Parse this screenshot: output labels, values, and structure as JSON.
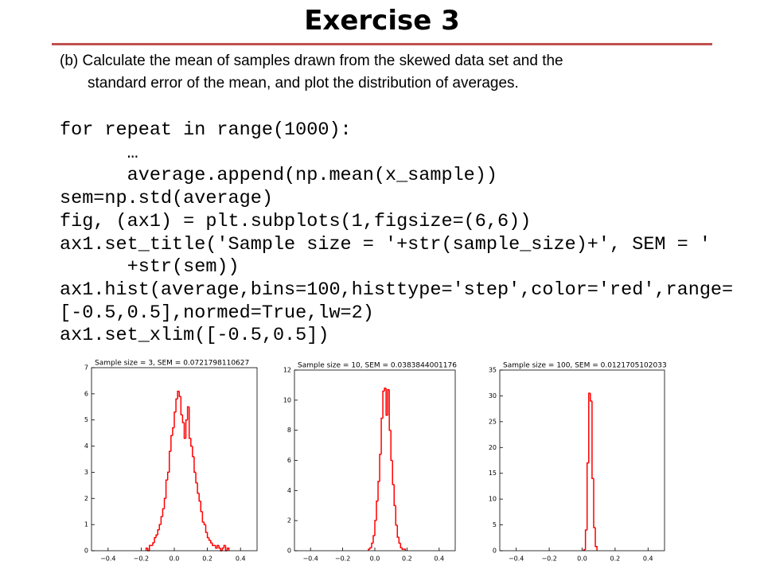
{
  "header": {
    "title": "Exercise 3"
  },
  "text": [
    "(b) Calculate the mean of samples drawn from the skewed data set and the",
    "standard error of the mean, and plot the distribution of averages."
  ],
  "code": [
    "for repeat in range(1000):",
    "      …",
    "      average.append(np.mean(x_sample))",
    "sem=np.std(average)",
    "fig, (ax1) = plt.subplots(1,figsize=(6,6))",
    "ax1.set_title('Sample size = '+str(sample_size)+', SEM = '",
    "      +str(sem))",
    "ax1.hist(average,bins=100,histtype='step',color='red',range=",
    "[-0.5,0.5],normed=True,lw=2)",
    "ax1.set_xlim([-0.5,0.5])"
  ],
  "chart_data": [
    {
      "type": "histogram",
      "title": "Sample size = 3, SEM = 0.0721798110627",
      "color": "#ff0000",
      "bins": [
        -0.17,
        -0.16,
        -0.15,
        -0.14,
        -0.13,
        -0.12,
        -0.11,
        -0.1,
        -0.09,
        -0.08,
        -0.07,
        -0.06,
        -0.05,
        -0.04,
        -0.03,
        -0.02,
        -0.01,
        0,
        0.01,
        0.02,
        0.03,
        0.04,
        0.05,
        0.06,
        0.07,
        0.08,
        0.09,
        0.1,
        0.11,
        0.12,
        0.13,
        0.14,
        0.15,
        0.16,
        0.17,
        0.18,
        0.19,
        0.2,
        0.21,
        0.22,
        0.23,
        0.24,
        0.25,
        0.26,
        0.27,
        0.28,
        0.29,
        0.3,
        0.31,
        0.32,
        0.33
      ],
      "values": [
        0.1,
        0,
        0.2,
        0.2,
        0.3,
        0.5,
        0.6,
        0.8,
        1.0,
        1.3,
        1.6,
        2.0,
        2.7,
        3.0,
        3.8,
        4.4,
        4.7,
        5.3,
        5.8,
        6.1,
        5.9,
        5.2,
        4.9,
        4.3,
        5.0,
        5.5,
        4.3,
        4.0,
        3.6,
        3.0,
        2.6,
        2.2,
        1.9,
        1.5,
        1.1,
        1.0,
        0.7,
        0.5,
        0.4,
        0.3,
        0.2,
        0.2,
        0.1,
        0.2,
        0.1,
        0,
        0.1,
        0.2,
        0,
        0.1
      ],
      "xlim": [
        -0.5,
        0.5
      ],
      "xticks": [
        {
          "value": -0.4,
          "label": "−0.4"
        },
        {
          "value": -0.2,
          "label": "−0.2"
        },
        {
          "value": 0,
          "label": "0.0"
        },
        0.2,
        0.4
      ],
      "ylim": [
        0,
        7
      ],
      "yticks": [
        0,
        1,
        2,
        3,
        4,
        5,
        6,
        7
      ]
    },
    {
      "type": "histogram",
      "title": "Sample size = 10, SEM = 0.0383844001176",
      "color": "#ff0000",
      "bins": [
        -0.04,
        -0.03,
        -0.02,
        -0.01,
        0,
        0.01,
        0.02,
        0.03,
        0.04,
        0.05,
        0.06,
        0.07,
        0.08,
        0.09,
        0.1,
        0.11,
        0.12,
        0.13,
        0.14,
        0.15,
        0.16,
        0.17,
        0.18,
        0.19
      ],
      "values": [
        0.1,
        0.2,
        0.5,
        1.0,
        2.0,
        3.3,
        4.6,
        6.4,
        8.8,
        10.6,
        10.8,
        9.0,
        10.7,
        8.0,
        6.0,
        4.4,
        3.0,
        1.7,
        0.9,
        0.5,
        0.2,
        0.1,
        0.1
      ],
      "xlim": [
        -0.5,
        0.5
      ],
      "xticks": [
        {
          "value": -0.4,
          "label": "−0.4"
        },
        {
          "value": -0.2,
          "label": "−0.2"
        },
        {
          "value": 0,
          "label": "0.0"
        },
        0.2,
        0.4
      ],
      "ylim": [
        0,
        12
      ],
      "yticks": [
        0,
        2,
        4,
        6,
        8,
        10,
        12
      ]
    },
    {
      "type": "histogram",
      "title": "Sample size = 100, SEM = 0.0121705102033",
      "color": "#ff0000",
      "bins": [
        0.01,
        0.02,
        0.03,
        0.04,
        0.05,
        0.06,
        0.07,
        0.08,
        0.09
      ],
      "values": [
        0.2,
        4.0,
        17,
        30.5,
        29,
        14,
        4.5,
        0.8
      ],
      "xlim": [
        -0.5,
        0.5
      ],
      "xticks": [
        {
          "value": -0.4,
          "label": "−0.4"
        },
        {
          "value": -0.2,
          "label": "−0.2"
        },
        {
          "value": 0,
          "label": "0.0"
        },
        0.2,
        0.4
      ],
      "ylim": [
        0,
        35
      ],
      "yticks": [
        0,
        5,
        10,
        15,
        20,
        25,
        30,
        35
      ]
    }
  ]
}
